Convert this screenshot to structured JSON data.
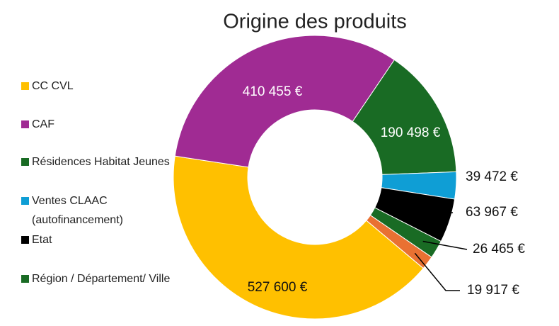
{
  "chart_data": {
    "type": "pie",
    "title": "Origine des produits",
    "series": [
      {
        "name": "CC CVL",
        "color": "#ffc000",
        "values": [
          527600
        ],
        "value_labels": [
          "527 600 €"
        ]
      },
      {
        "name": "CAF",
        "color": "#a02b93",
        "values": [
          410455
        ],
        "value_labels": [
          "410 455 €"
        ]
      },
      {
        "name": "Résidences Habitat Jeunes",
        "color": "#196b24",
        "values": [
          190498
        ],
        "value_labels": [
          "190 498 €"
        ]
      },
      {
        "name": "Ventes CLAAC (autofinancement)",
        "color": "#0f9ed5",
        "values": [
          39472
        ],
        "value_labels": [
          "39 472 €"
        ]
      },
      {
        "name": "Etat",
        "color": "#000000",
        "values": [
          63967
        ],
        "value_labels": [
          "63 967 €"
        ]
      },
      {
        "name": "Région / Département/ Ville",
        "color": "#196b24",
        "values": [
          26465
        ],
        "value_labels": [
          "26 465 €"
        ]
      },
      {
        "color": "#e97132",
        "values": [
          19917
        ],
        "value_labels": [
          "19 917 €"
        ]
      }
    ]
  }
}
